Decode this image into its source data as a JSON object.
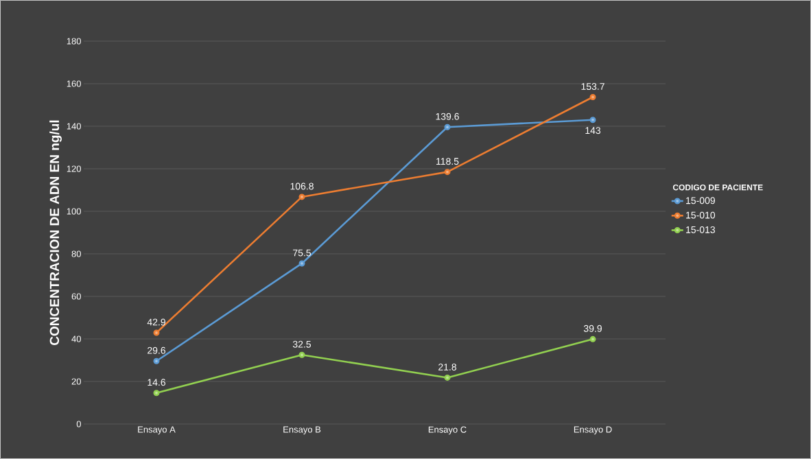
{
  "chart_data": {
    "type": "line",
    "ylabel": "CONCENTRACION DE ADN EN ng/ul",
    "legend_title": "CODIGO DE PACIENTE",
    "categories": [
      "Ensayo A",
      "Ensayo B",
      "Ensayo C",
      "Ensayo D"
    ],
    "series": [
      {
        "name": "15-009",
        "color": "#5b9bd5",
        "values": [
          29.6,
          75.5,
          139.6,
          143
        ]
      },
      {
        "name": "15-010",
        "color": "#ed7d31",
        "values": [
          42.9,
          106.8,
          118.5,
          153.7
        ]
      },
      {
        "name": "15-013",
        "color": "#92d050",
        "values": [
          14.6,
          32.5,
          21.8,
          39.9
        ]
      }
    ],
    "ylim": [
      0,
      180
    ],
    "yticks": [
      0,
      20,
      40,
      60,
      80,
      100,
      120,
      140,
      160,
      180
    ],
    "grid": "y",
    "legend": "right",
    "marker": "circle",
    "data_labels": true
  }
}
